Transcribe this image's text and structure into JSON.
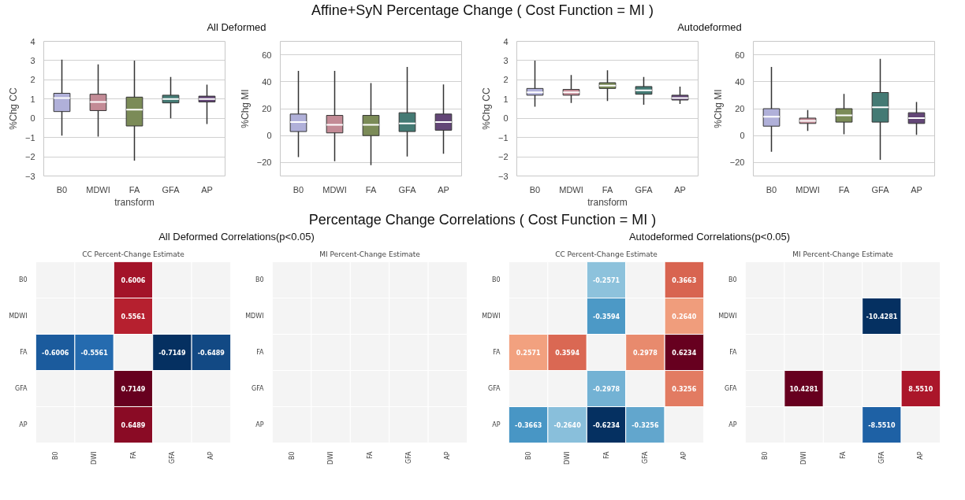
{
  "chart_data": [
    {
      "type": "box",
      "annotations": [
        "Affine+SyN Percentage Change ( Cost Function = MI )"
      ],
      "subtitle": "All Deformed",
      "xlabel": "transform",
      "ylabel": "%Chg CC",
      "categories": [
        "B0",
        "MDWI",
        "FA",
        "GFA",
        "AP"
      ],
      "colors": [
        "#b0b0d9",
        "#c38b96",
        "#7b8b57",
        "#447a74",
        "#634677"
      ],
      "ylim": [
        -3,
        4
      ],
      "yticks": [
        -3,
        -2,
        -1,
        0,
        1,
        2,
        3,
        4
      ],
      "grid": "y",
      "boxes": [
        {
          "low": -0.9,
          "q1": 0.35,
          "median": 1.05,
          "q3": 1.3,
          "high": 3.05
        },
        {
          "low": -0.95,
          "q1": 0.4,
          "median": 0.85,
          "q3": 1.25,
          "high": 2.8
        },
        {
          "low": -2.2,
          "q1": -0.4,
          "median": 0.45,
          "q3": 1.1,
          "high": 3.0
        },
        {
          "low": 0.0,
          "q1": 0.8,
          "median": 1.0,
          "q3": 1.2,
          "high": 2.15
        },
        {
          "low": -0.3,
          "q1": 0.85,
          "median": 1.0,
          "q3": 1.15,
          "high": 1.75
        }
      ]
    },
    {
      "type": "box",
      "ylabel": "%Chg MI",
      "categories": [
        "B0",
        "MDWI",
        "FA",
        "GFA",
        "AP"
      ],
      "colors": [
        "#b0b0d9",
        "#c38b96",
        "#7b8b57",
        "#447a74",
        "#634677"
      ],
      "ylim": [
        -30,
        70
      ],
      "yticks": [
        -20,
        0,
        20,
        40,
        60
      ],
      "grid": "y",
      "boxes": [
        {
          "low": -16,
          "q1": 3,
          "median": 10,
          "q3": 16,
          "high": 48
        },
        {
          "low": -19,
          "q1": 2,
          "median": 8,
          "q3": 15,
          "high": 48
        },
        {
          "low": -22,
          "q1": 0,
          "median": 8,
          "q3": 15,
          "high": 39
        },
        {
          "low": -15.5,
          "q1": 3,
          "median": 9,
          "q3": 17,
          "high": 51
        },
        {
          "low": -13.5,
          "q1": 4,
          "median": 10,
          "q3": 16,
          "high": 38
        }
      ]
    },
    {
      "type": "box",
      "subtitle": "Autodeformed",
      "xlabel": "transform",
      "ylabel": "%Chg CC",
      "categories": [
        "B0",
        "MDWI",
        "FA",
        "GFA",
        "AP"
      ],
      "colors": [
        "#b0b0d9",
        "#c38b96",
        "#7b8b57",
        "#447a74",
        "#634677"
      ],
      "ylim": [
        -3,
        4
      ],
      "yticks": [
        -3,
        -2,
        -1,
        0,
        1,
        2,
        3,
        4
      ],
      "grid": "y",
      "boxes": [
        {
          "low": 0.6,
          "q1": 1.2,
          "median": 1.35,
          "q3": 1.55,
          "high": 3.0
        },
        {
          "low": 0.8,
          "q1": 1.2,
          "median": 1.35,
          "q3": 1.5,
          "high": 2.25
        },
        {
          "low": 0.9,
          "q1": 1.55,
          "median": 1.7,
          "q3": 1.85,
          "high": 2.5
        },
        {
          "low": 0.7,
          "q1": 1.25,
          "median": 1.45,
          "q3": 1.65,
          "high": 2.15
        },
        {
          "low": 0.75,
          "q1": 0.95,
          "median": 1.05,
          "q3": 1.2,
          "high": 1.65
        }
      ]
    },
    {
      "type": "box",
      "ylabel": "%Chg MI",
      "categories": [
        "B0",
        "MDWI",
        "FA",
        "GFA",
        "AP"
      ],
      "colors": [
        "#b0b0d9",
        "#c38b96",
        "#7b8b57",
        "#447a74",
        "#634677"
      ],
      "ylim": [
        -30,
        70
      ],
      "yticks": [
        -20,
        0,
        20,
        40,
        60
      ],
      "grid": "y",
      "boxes": [
        {
          "low": -12,
          "q1": 7,
          "median": 14,
          "q3": 20,
          "high": 51
        },
        {
          "low": 3.5,
          "q1": 9,
          "median": 11,
          "q3": 13,
          "high": 19
        },
        {
          "low": 1,
          "q1": 10,
          "median": 15,
          "q3": 20,
          "high": 31
        },
        {
          "low": -18,
          "q1": 10,
          "median": 21,
          "q3": 32,
          "high": 57
        },
        {
          "low": 0.5,
          "q1": 9,
          "median": 13,
          "q3": 17,
          "high": 25
        }
      ]
    },
    {
      "type": "heatmap",
      "annotations": [
        "Percentage Change Correlations ( Cost Function = MI )"
      ],
      "subtitle": "All Deformed Correlations(p<0.05)",
      "title": "CC Percent-Change Estimate",
      "categories": [
        "B0",
        "DWI",
        "FA",
        "GFA",
        "AP"
      ],
      "y_categories": [
        "B0",
        "MDWI",
        "FA",
        "GFA",
        "AP"
      ],
      "cells": [
        [
          null,
          null,
          0.6006,
          null,
          null
        ],
        [
          null,
          null,
          0.5561,
          null,
          null
        ],
        [
          -0.6006,
          -0.5561,
          null,
          -0.7149,
          -0.6489
        ],
        [
          null,
          null,
          0.7149,
          null,
          null
        ],
        [
          null,
          null,
          0.6489,
          null,
          null
        ]
      ],
      "cell_labels": [
        [
          null,
          null,
          "0.6006",
          null,
          null
        ],
        [
          null,
          null,
          "0.5561",
          null,
          null
        ],
        [
          "-0.6006",
          "-0.5561",
          null,
          "-0.7149",
          "-0.6489"
        ],
        [
          null,
          null,
          "0.7149",
          null,
          null
        ],
        [
          null,
          null,
          "0.6489",
          null,
          null
        ]
      ]
    },
    {
      "type": "heatmap",
      "title": "MI Percent-Change Estimate",
      "categories": [
        "B0",
        "DWI",
        "FA",
        "GFA",
        "AP"
      ],
      "y_categories": [
        "B0",
        "MDWI",
        "FA",
        "GFA",
        "AP"
      ],
      "cells": [
        [
          null,
          null,
          null,
          null,
          null
        ],
        [
          null,
          null,
          null,
          null,
          null
        ],
        [
          null,
          null,
          null,
          null,
          null
        ],
        [
          null,
          null,
          null,
          null,
          null
        ],
        [
          null,
          null,
          null,
          null,
          null
        ]
      ]
    },
    {
      "type": "heatmap",
      "subtitle": "Autodeformed Correlations(p<0.05)",
      "title": "CC Percent-Change Estimate",
      "categories": [
        "B0",
        "DWI",
        "FA",
        "GFA",
        "AP"
      ],
      "y_categories": [
        "B0",
        "MDWI",
        "FA",
        "GFA",
        "AP"
      ],
      "cells": [
        [
          null,
          null,
          -0.2571,
          null,
          0.3663
        ],
        [
          null,
          null,
          -0.3594,
          null,
          0.264
        ],
        [
          0.2571,
          0.3594,
          null,
          0.2978,
          0.6234
        ],
        [
          null,
          null,
          -0.2978,
          null,
          0.3256
        ],
        [
          -0.3663,
          -0.264,
          -0.6234,
          -0.3256,
          null
        ]
      ],
      "cell_labels": [
        [
          null,
          null,
          "-0.2571",
          null,
          "0.3663"
        ],
        [
          null,
          null,
          "-0.3594",
          null,
          "0.2640"
        ],
        [
          "0.2571",
          "0.3594",
          null,
          "0.2978",
          "0.6234"
        ],
        [
          null,
          null,
          "-0.2978",
          null,
          "0.3256"
        ],
        [
          "-0.3663",
          "-0.2640",
          "-0.6234",
          "-0.3256",
          null
        ]
      ]
    },
    {
      "type": "heatmap",
      "title": "MI Percent-Change Estimate",
      "categories": [
        "B0",
        "DWI",
        "FA",
        "GFA",
        "AP"
      ],
      "y_categories": [
        "B0",
        "MDWI",
        "FA",
        "GFA",
        "AP"
      ],
      "cells": [
        [
          null,
          null,
          null,
          null,
          null
        ],
        [
          null,
          null,
          null,
          -10.4281,
          null
        ],
        [
          null,
          null,
          null,
          null,
          null
        ],
        [
          null,
          10.4281,
          null,
          null,
          8.551
        ],
        [
          null,
          null,
          null,
          -8.551,
          null
        ]
      ],
      "cell_labels": [
        [
          null,
          null,
          null,
          null,
          null
        ],
        [
          null,
          null,
          null,
          "-10.4281",
          null
        ],
        [
          null,
          null,
          null,
          null,
          null
        ],
        [
          null,
          "10.4281",
          null,
          null,
          "8.5510"
        ],
        [
          null,
          null,
          null,
          "-8.5510",
          null
        ]
      ]
    }
  ]
}
